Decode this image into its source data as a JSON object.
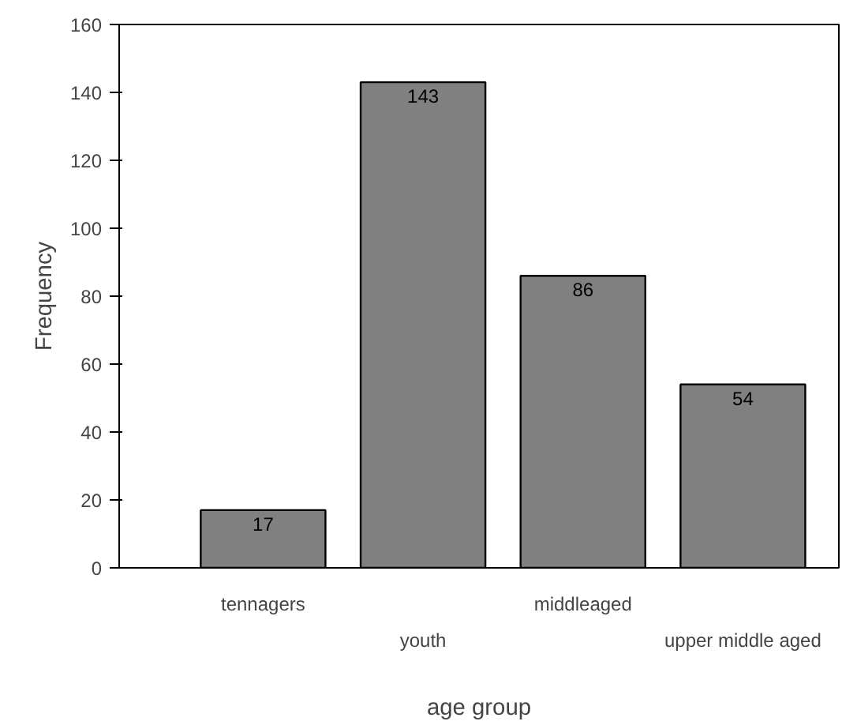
{
  "chart_data": {
    "type": "bar",
    "xlabel": "age group",
    "ylabel": "Frequency",
    "categories": [
      "tennagers",
      "youth",
      "middleaged",
      "upper middle aged"
    ],
    "values": [
      17,
      143,
      86,
      54
    ],
    "color": "#808080",
    "ylim": [
      0,
      160
    ],
    "yticks": [
      0,
      20,
      40,
      60,
      80,
      100,
      120,
      140,
      160
    ],
    "grid": false,
    "data_labels": true
  }
}
